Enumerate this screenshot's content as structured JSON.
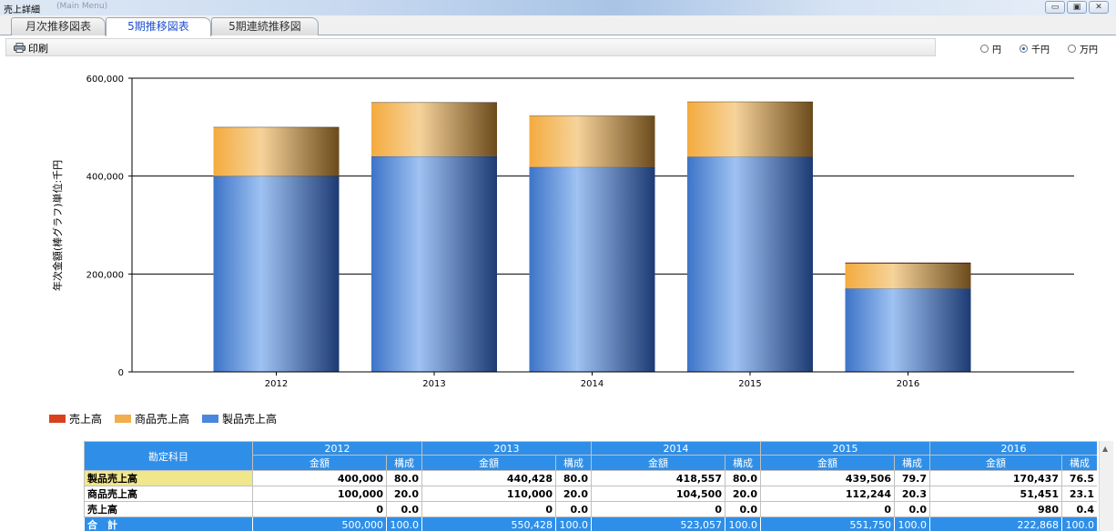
{
  "window": {
    "title": "売上詳細",
    "subtitle": "(Main Menu)"
  },
  "tabs": [
    {
      "label": "月次推移図表",
      "active": false
    },
    {
      "label": "5期推移図表",
      "active": true
    },
    {
      "label": "5期連続推移図",
      "active": false
    }
  ],
  "toolbar": {
    "print_label": "印刷"
  },
  "units": {
    "options": [
      {
        "label": "円",
        "selected": false
      },
      {
        "label": "千円",
        "selected": true
      },
      {
        "label": "万円",
        "selected": false
      }
    ]
  },
  "colors": {
    "product": "#4a86de",
    "merch": "#f2ad4c",
    "sales": "#d9411e",
    "header_blue": "#2f8fe8",
    "highlight": "#f0e68c"
  },
  "chart_data": {
    "type": "bar",
    "stacked": true,
    "categories": [
      "2012",
      "2013",
      "2014",
      "2015",
      "2016"
    ],
    "ylabel": "年次金額(棒グラフ)単位:千円",
    "ylim": [
      0,
      600000
    ],
    "yticks": [
      0,
      200000,
      400000,
      600000
    ],
    "ytick_labels": [
      "0",
      "200,000",
      "400,000",
      "600,000"
    ],
    "grid": true,
    "legend_position": "bottom-left",
    "series": [
      {
        "name": "売上高",
        "values": [
          0,
          0,
          0,
          0,
          980
        ]
      },
      {
        "name": "製品売上高",
        "values": [
          400000,
          440428,
          418557,
          439506,
          170437
        ]
      },
      {
        "name": "商品売上高",
        "values": [
          100000,
          110000,
          104500,
          112244,
          51451
        ]
      }
    ]
  },
  "legend": [
    {
      "label": "売上高",
      "color": "#d9411e"
    },
    {
      "label": "商品売上高",
      "color": "#f2ad4c"
    },
    {
      "label": "製品売上高",
      "color": "#4a86de"
    }
  ],
  "table": {
    "corner_label": "勘定科目",
    "years": [
      "2012",
      "2013",
      "2014",
      "2015",
      "2016"
    ],
    "sub_headers": {
      "amount": "金額",
      "ratio": "構成"
    },
    "rows": [
      {
        "label": "製品売上高",
        "selected": true,
        "amounts": [
          "400,000",
          "440,428",
          "418,557",
          "439,506",
          "170,437"
        ],
        "ratios": [
          "80.0",
          "80.0",
          "80.0",
          "79.7",
          "76.5"
        ]
      },
      {
        "label": "商品売上高",
        "selected": false,
        "amounts": [
          "100,000",
          "110,000",
          "104,500",
          "112,244",
          "51,451"
        ],
        "ratios": [
          "20.0",
          "20.0",
          "20.0",
          "20.3",
          "23.1"
        ]
      },
      {
        "label": "売上高",
        "selected": false,
        "amounts": [
          "0",
          "0",
          "0",
          "0",
          "980"
        ],
        "ratios": [
          "0.0",
          "0.0",
          "0.0",
          "0.0",
          "0.4"
        ]
      },
      {
        "label": "合　計",
        "total": true,
        "amounts": [
          "500,000",
          "550,428",
          "523,057",
          "551,750",
          "222,868"
        ],
        "ratios": [
          "100.0",
          "100.0",
          "100.0",
          "100.0",
          "100.0"
        ]
      }
    ]
  }
}
